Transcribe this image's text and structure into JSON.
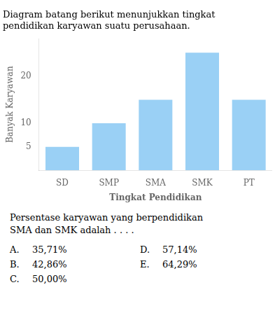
{
  "chart_data": {
    "type": "bar",
    "title": "Diagram batang berikut menunjukkan tingkat\npendidikan karyawan suatu perusahaan.",
    "categories": [
      "SD",
      "SMP",
      "SMA",
      "SMK",
      "PT"
    ],
    "values": [
      5,
      10,
      15,
      25,
      15
    ],
    "xlabel": "Tingkat Pendidikan",
    "ylabel": "Banyak Karyawan",
    "ylim": [
      0,
      28
    ],
    "yticks": [
      5,
      10,
      20
    ],
    "grid": false,
    "annotations": [
      "Persentase karyawan yang berpendidikan\nSMA dan SMK adalah . . . .",
      "A.",
      "35,71%",
      "D.",
      "57,14%",
      "B.",
      "42,86%",
      "E.",
      "64,29%",
      "C.",
      "50,00%"
    ]
  }
}
